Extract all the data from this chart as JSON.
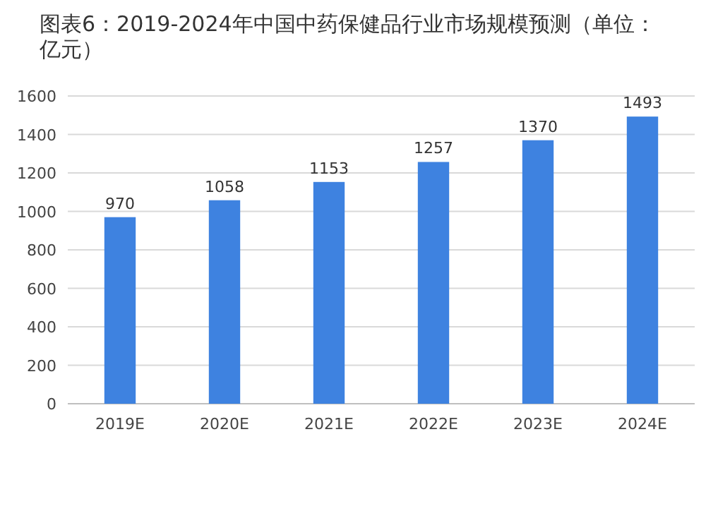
{
  "chart_data": {
    "type": "bar",
    "title": "图表6：2019-2024年中国中药保健品行业市场规模预测（单位：亿元）",
    "categories": [
      "2019E",
      "2020E",
      "2021E",
      "2022E",
      "2023E",
      "2024E"
    ],
    "values": [
      970,
      1058,
      1153,
      1257,
      1370,
      1493
    ],
    "color": "#3e82e0",
    "ylim": [
      0,
      1600
    ],
    "yticks": [
      0,
      200,
      400,
      600,
      800,
      1000,
      1200,
      1400,
      1600
    ],
    "grid": "y",
    "data_labels": true
  }
}
